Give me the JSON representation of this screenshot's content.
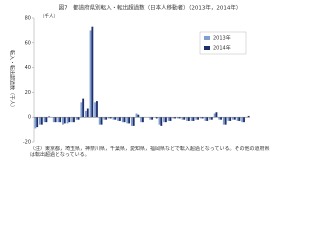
{
  "chart_data": {
    "type": "bar",
    "title": "図7　都道府県別転入・転出超過数（日本人移動者）（2013年，2014年）",
    "y_label": "転入・転出超過数（千人）",
    "unit_label": "（千人）",
    "note": "（注）東京都，埼玉県，神奈川県，千葉県，愛知県，福岡県などで転入超過となっている。その他の道府県は転出超過となっている。",
    "categories": [
      null,
      null,
      null,
      null,
      null,
      null,
      null,
      null,
      null,
      null,
      null,
      null,
      null,
      null,
      null,
      null,
      null,
      null,
      null,
      null,
      null,
      null,
      null,
      null,
      null,
      null,
      null,
      null,
      null,
      null,
      null,
      null,
      null,
      null,
      null,
      null,
      null,
      null,
      null,
      null,
      null,
      null,
      null,
      null,
      null,
      null,
      null
    ],
    "series": [
      {
        "name": "2013年",
        "color": "#7f9fd0",
        "values": [
          -9,
          -6,
          -4,
          1,
          -4,
          -4,
          -6,
          -5,
          -4,
          -2,
          12,
          5,
          70,
          12,
          -6,
          -2,
          -1,
          -2,
          -3,
          -4,
          -5,
          -7,
          3,
          -4,
          0,
          -2,
          0,
          -6,
          -4,
          -3,
          -1,
          -1,
          -2,
          -3,
          -3,
          -2,
          -1,
          -3,
          -2,
          3,
          -2,
          -6,
          -3,
          -2,
          -3,
          -4,
          0
        ]
      },
      {
        "name": "2014年",
        "color": "#1f2f6e",
        "values": [
          -8,
          -6,
          -4,
          0,
          -4,
          -4,
          -5,
          -4,
          -4,
          -2,
          15,
          7,
          73,
          13,
          -6,
          -2,
          -1,
          -2,
          -3,
          -4,
          -5,
          -7,
          2,
          -4,
          0,
          -2,
          -1,
          -7,
          -4,
          -3,
          -1,
          -1,
          -2,
          -3,
          -3,
          -2,
          -1,
          -3,
          -2,
          4,
          -2,
          -6,
          -3,
          -2,
          -3,
          -4,
          1
        ]
      }
    ],
    "ylim": [
      -20,
      80
    ],
    "yticks": [
      -20,
      0,
      20,
      40,
      60,
      80
    ],
    "legend": "upper-right"
  }
}
